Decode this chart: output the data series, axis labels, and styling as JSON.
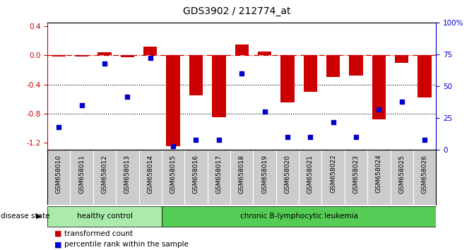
{
  "title": "GDS3902 / 212774_at",
  "samples": [
    "GSM658010",
    "GSM658011",
    "GSM658012",
    "GSM658013",
    "GSM658014",
    "GSM658015",
    "GSM658016",
    "GSM658017",
    "GSM658018",
    "GSM658019",
    "GSM658020",
    "GSM658021",
    "GSM658022",
    "GSM658023",
    "GSM658024",
    "GSM658025",
    "GSM658026"
  ],
  "bar_values": [
    -0.02,
    -0.02,
    0.04,
    -0.03,
    0.12,
    -1.25,
    -0.55,
    -0.85,
    0.15,
    0.05,
    -0.65,
    -0.5,
    -0.3,
    -0.28,
    -0.88,
    -0.1,
    -0.58
  ],
  "percentile_values": [
    18,
    35,
    68,
    42,
    72,
    3,
    8,
    8,
    60,
    30,
    10,
    10,
    22,
    10,
    32,
    38,
    8
  ],
  "healthy_count": 5,
  "bar_color": "#CC0000",
  "scatter_color": "#0000CC",
  "ylim_left": [
    -1.3,
    0.45
  ],
  "ylim_right": [
    0,
    100
  ],
  "yticks_left": [
    0.4,
    0.0,
    -0.4,
    -0.8,
    -1.2
  ],
  "yticks_right": [
    0,
    25,
    50,
    75,
    100
  ],
  "hline_y": 0.0,
  "dotted_lines": [
    -0.4,
    -0.8
  ],
  "group1_label": "healthy control",
  "group2_label": "chronic B-lymphocytic leukemia",
  "disease_label": "disease state",
  "legend1": "transformed count",
  "legend2": "percentile rank within the sample",
  "bg_color": "#FFFFFF",
  "tick_area_color": "#CCCCCC",
  "group1_color": "#AAEAAA",
  "group2_color": "#55CC55"
}
